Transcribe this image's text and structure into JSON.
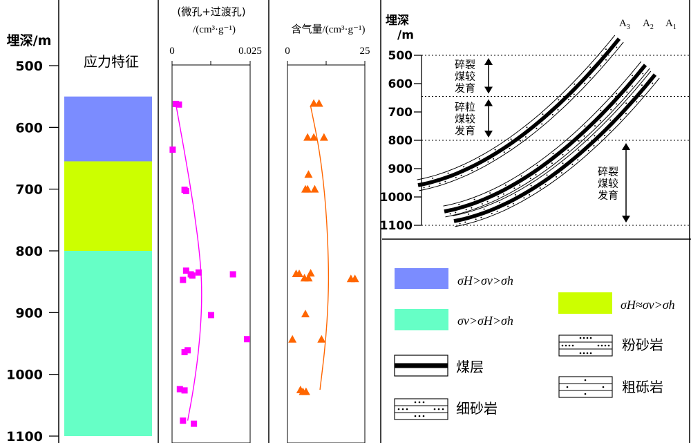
{
  "depth_axis": {
    "title": "埋深/m",
    "ticks": [
      500,
      600,
      700,
      800,
      900,
      1000,
      1100
    ],
    "range": [
      500,
      1100
    ]
  },
  "stress_column": {
    "title": "应力特征",
    "zones": [
      {
        "from": 550,
        "to": 655,
        "color": "#7b8cff",
        "regime": "σH>σv>σh"
      },
      {
        "from": 655,
        "to": 800,
        "color": "#ccff00",
        "regime": "σH≈σv>σh"
      },
      {
        "from": 800,
        "to": 1100,
        "color": "#66ffc6",
        "regime": "σv>σH>σh"
      }
    ]
  },
  "pore_panel": {
    "title_line1": "(微孔+过渡孔)",
    "title_line2": "/(cm³·g⁻¹)",
    "tick_labels": [
      "0",
      "0.025"
    ],
    "range": [
      0,
      0.025
    ],
    "marker_color": "#ff00ff"
  },
  "gas_panel": {
    "title": "含气量/(cm³·g⁻¹)",
    "tick_labels": [
      "0",
      "25"
    ],
    "range": [
      0,
      25
    ],
    "marker_color": "#ff6600"
  },
  "chart_data": [
    {
      "type": "scatter",
      "title": "(微孔+过渡孔)/(cm³·g⁻¹)",
      "ylabel": "埋深/m",
      "xlim": [
        0,
        0.025
      ],
      "ylim": [
        500,
        1100
      ],
      "series": [
        {
          "marker": "square",
          "color": "#ff00ff",
          "points": [
            [
              0.0012,
              562
            ],
            [
              0.0022,
              563
            ],
            [
              0.0002,
              636
            ],
            [
              0.004,
              701
            ],
            [
              0.0045,
              703
            ],
            [
              0.0045,
              832
            ],
            [
              0.0085,
              835
            ],
            [
              0.006,
              838
            ],
            [
              0.0065,
              840
            ],
            [
              0.0195,
              838
            ],
            [
              0.0035,
              847
            ],
            [
              0.0125,
              904
            ],
            [
              0.024,
              943
            ],
            [
              0.005,
              961
            ],
            [
              0.004,
              964
            ],
            [
              0.0025,
              1024
            ],
            [
              0.004,
              1026
            ],
            [
              0.0035,
              1075
            ],
            [
              0.007,
              1080
            ]
          ]
        },
        {
          "type": "line",
          "name": "",
          "color": "#ff00ff",
          "points": [
            [
              0.0012,
              562
            ],
            [
              0.004,
              640
            ],
            [
              0.007,
              730
            ],
            [
              0.0092,
              820
            ],
            [
              0.0096,
              880
            ],
            [
              0.0088,
              950
            ],
            [
              0.007,
              1020
            ],
            [
              0.005,
              1075
            ]
          ]
        }
      ]
    },
    {
      "type": "scatter",
      "title": "含气量/(cm³·g⁻¹)",
      "ylabel": "埋深/m",
      "xlim": [
        0,
        25
      ],
      "ylim": [
        500,
        1100
      ],
      "series": [
        {
          "marker": "triangle",
          "color": "#ff6600",
          "points": [
            [
              8.5,
              561
            ],
            [
              10.2,
              561
            ],
            [
              6.5,
              616
            ],
            [
              8.5,
              616
            ],
            [
              11.8,
              616
            ],
            [
              6.8,
              676
            ],
            [
              5.8,
              700
            ],
            [
              6.5,
              700
            ],
            [
              8.8,
              700
            ],
            [
              2.8,
              837
            ],
            [
              3.8,
              837
            ],
            [
              7.5,
              836
            ],
            [
              5.5,
              844
            ],
            [
              6.8,
              844
            ],
            [
              20.5,
              845
            ],
            [
              21.8,
              845
            ],
            [
              5.8,
              902
            ],
            [
              1.6,
              943
            ],
            [
              11.0,
              943
            ],
            [
              4.2,
              1025
            ],
            [
              5.0,
              1028
            ],
            [
              6.0,
              1028
            ]
          ]
        },
        {
          "type": "line",
          "name": "",
          "color": "#ff6600",
          "points": [
            [
              7.5,
              566
            ],
            [
              10.5,
              640
            ],
            [
              12.5,
              730
            ],
            [
              13.3,
              820
            ],
            [
              13.2,
              880
            ],
            [
              12.3,
              950
            ],
            [
              10.5,
              1025
            ]
          ]
        }
      ]
    }
  ],
  "structure_panel": {
    "depth_title_line1": "埋深",
    "depth_title_line2": "/m",
    "ticks": [
      500,
      600,
      700,
      800,
      900,
      1000,
      1100
    ],
    "horizon_depths": [
      500,
      645,
      800,
      1100
    ],
    "seam_labels": [
      {
        "main": "A",
        "sub": "3"
      },
      {
        "main": "A",
        "sub": "2"
      },
      {
        "main": "A",
        "sub": "1"
      }
    ],
    "annotations": [
      {
        "lines": [
          "碎裂",
          "煤较",
          "发育"
        ],
        "from": 500,
        "to": 645
      },
      {
        "lines": [
          "碎粒",
          "煤较",
          "发育"
        ],
        "from": 645,
        "to": 800
      },
      {
        "lines": [
          "碎裂",
          "煤较",
          "发育"
        ],
        "from": 800,
        "to": 1100
      }
    ]
  },
  "legend": {
    "regime_1": {
      "color": "#7b8cff",
      "text": "σH>σv>σh"
    },
    "regime_2": {
      "color": "#66ffc6",
      "text": "σv>σH>σh"
    },
    "regime_3": {
      "color": "#ccff00",
      "text": "σH≈σv>σh"
    },
    "coal_seam": "煤层",
    "fine_sandstone": "细砂岩",
    "siltstone": "粉砂岩",
    "pebbly_sandstone": "粗砾岩"
  }
}
